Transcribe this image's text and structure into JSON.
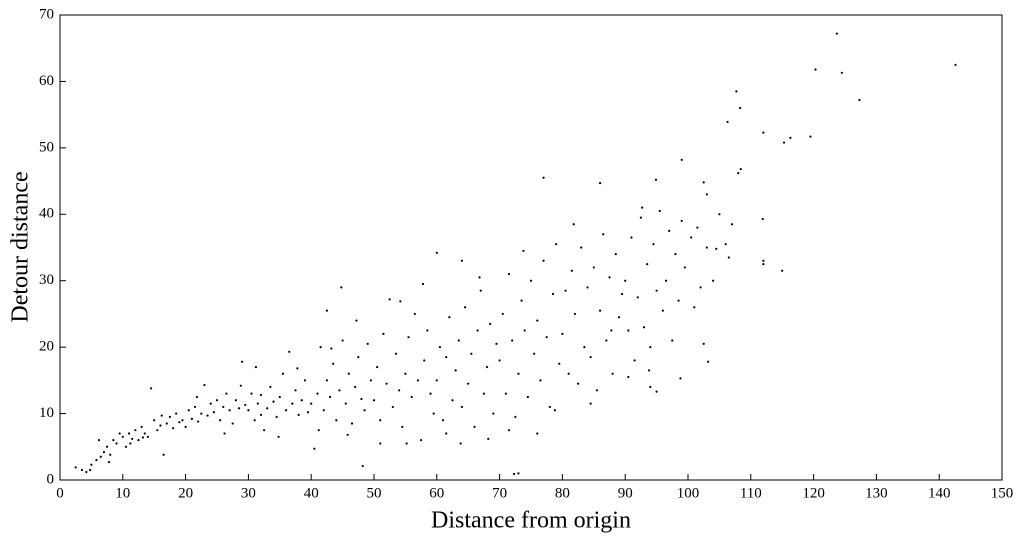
{
  "chart_data": {
    "type": "scatter",
    "x_label": "Distance from origin",
    "y_label": "Detour distance",
    "color": "#000000",
    "xlim": [
      0,
      150
    ],
    "xticks": [
      0,
      10,
      20,
      30,
      40,
      50,
      60,
      70,
      80,
      90,
      100,
      110,
      120,
      130,
      140,
      150
    ],
    "ylim": [
      0,
      70
    ],
    "yticks": [
      0,
      10,
      20,
      30,
      40,
      50,
      60,
      70
    ],
    "x": [
      123.7,
      120.3,
      124.5,
      142.6,
      127.3,
      107.7,
      108.3,
      106.3,
      112,
      115.3,
      116.3,
      119.5,
      108.4,
      108,
      99,
      86,
      77,
      72.3,
      73,
      48.2,
      60,
      64,
      44.8,
      42.5,
      115,
      112,
      112,
      111.9,
      102.5,
      103,
      92.7,
      94.9,
      103.2,
      98.8,
      94,
      95,
      2.5,
      3.5,
      4.2,
      5,
      5.8,
      6.5,
      7,
      7.5,
      8,
      8.5,
      9,
      9.5,
      6.2,
      4.8,
      7.8,
      10,
      10.5,
      11,
      11.5,
      12,
      12.5,
      13,
      13.5,
      14,
      14.5,
      15,
      15.5,
      16,
      16.5,
      17,
      17.5,
      18,
      18.5,
      19,
      19.5,
      11.2,
      13.2,
      16.2,
      20,
      20.5,
      21,
      21.5,
      22,
      22.5,
      23,
      23.5,
      24,
      24.5,
      25,
      25.5,
      26,
      26.5,
      27,
      27.5,
      28,
      28.5,
      29,
      29.5,
      21.8,
      26.2,
      28.8,
      30,
      30.5,
      31,
      31.5,
      32,
      32.5,
      33,
      33.5,
      34,
      34.5,
      35,
      35.5,
      36,
      36.5,
      37,
      37.5,
      38,
      38.5,
      39,
      39.5,
      31.2,
      34.8,
      37.8,
      32,
      40,
      40.5,
      41,
      41.5,
      42,
      42.5,
      43,
      43.5,
      44,
      44.5,
      45,
      45.5,
      46,
      46.5,
      47,
      47.5,
      48,
      48.5,
      49,
      49.5,
      41.2,
      45.8,
      47.2,
      43.2,
      50,
      50.5,
      51,
      51.5,
      52,
      52.5,
      53,
      53.5,
      54,
      54.5,
      55,
      55.5,
      56,
      56.5,
      57,
      57.5,
      58,
      58.5,
      59,
      59.5,
      51,
      54.2,
      57.8,
      55.2,
      60,
      60.5,
      61,
      61.5,
      62,
      62.5,
      63,
      63.5,
      64,
      64.5,
      65,
      65.5,
      66,
      66.5,
      67,
      67.5,
      68,
      68.5,
      69,
      69.5,
      61.5,
      63.8,
      66.8,
      68.2,
      70,
      70.5,
      71,
      71.5,
      72,
      72.5,
      73,
      73.5,
      74,
      74.5,
      75,
      75.5,
      76,
      76.5,
      77,
      77.5,
      78,
      78.5,
      79,
      79.5,
      71.5,
      76,
      78.8,
      73.8,
      80,
      80.5,
      81,
      81.5,
      82,
      82.5,
      83,
      83.5,
      84,
      84.5,
      85,
      85.5,
      86,
      86.5,
      87,
      87.5,
      88,
      88.5,
      89,
      89.5,
      81.8,
      84.5,
      87.8,
      90,
      90.5,
      91,
      91.5,
      92,
      92.5,
      93,
      93.5,
      94,
      94.5,
      95,
      95.5,
      96,
      96.5,
      97,
      97.5,
      98,
      98.5,
      99,
      99.5,
      90.5,
      93.8,
      100.5,
      101,
      102,
      102.5,
      103,
      104,
      105,
      106,
      106.5,
      107,
      104.5,
      101.5
    ],
    "values": [
      67.2,
      61.8,
      61.3,
      62.5,
      57.2,
      58.5,
      56,
      53.9,
      52.3,
      50.8,
      51.5,
      51.7,
      46.8,
      46.2,
      48.2,
      44.7,
      45.5,
      0.9,
      1,
      2.1,
      34.2,
      33,
      29,
      25.5,
      31.5,
      33,
      32.5,
      39.3,
      44.8,
      43,
      41,
      45.2,
      17.8,
      15.3,
      14,
      13.3,
      1.9,
      1.5,
      1.2,
      2.3,
      3,
      3.5,
      4.2,
      5,
      3.8,
      6,
      5.5,
      7,
      6,
      1.5,
      2.7,
      6.5,
      5,
      7,
      6.2,
      7.5,
      6,
      8,
      7,
      6.5,
      13.8,
      9,
      7.5,
      8.2,
      3.8,
      8.5,
      9.5,
      7.8,
      10,
      8.7,
      9,
      5.5,
      6.4,
      9.7,
      8,
      10.5,
      9.2,
      11,
      8.8,
      10,
      14.3,
      9.7,
      11.5,
      10.2,
      12,
      9,
      11,
      13,
      10.5,
      8.5,
      12,
      10.8,
      17.8,
      11.3,
      12.5,
      7,
      14.2,
      10.5,
      13,
      9,
      11.5,
      12.8,
      7.5,
      10.8,
      14,
      11.8,
      9.5,
      12.5,
      16,
      10.5,
      19.3,
      11.5,
      13.5,
      9.8,
      12,
      15,
      10.2,
      17,
      6.5,
      16.8,
      9.8,
      11.5,
      4.7,
      13,
      20,
      10.5,
      15,
      12.5,
      17.5,
      9,
      13.5,
      21,
      11.5,
      16,
      8.5,
      14,
      18.5,
      12.2,
      10.5,
      20.5,
      15,
      7.5,
      6.8,
      24,
      19.8,
      12,
      17,
      9,
      22,
      14.5,
      27.2,
      11,
      19,
      13.5,
      8,
      16,
      21.5,
      12.5,
      25,
      15,
      6,
      18,
      22.5,
      13,
      10,
      5.5,
      26.9,
      29.5,
      5.5,
      15,
      20,
      9,
      18.5,
      24.5,
      12,
      16.5,
      21,
      11,
      26,
      14.5,
      19,
      8,
      22.5,
      28.5,
      13,
      17,
      23.5,
      10,
      20.5,
      7,
      5.5,
      30.5,
      6.2,
      18,
      25,
      13,
      31,
      21,
      9.5,
      16,
      27,
      22.5,
      12.5,
      30,
      19,
      24,
      15,
      33,
      21.5,
      11,
      28,
      35.5,
      17.5,
      7.5,
      7,
      10.5,
      34.5,
      22,
      28.5,
      16,
      31.5,
      25,
      14.5,
      35,
      20,
      29,
      18.5,
      32,
      13.5,
      25.5,
      37,
      21,
      30.5,
      16,
      34,
      24.5,
      28,
      38.5,
      11.5,
      22.5,
      30,
      22.5,
      36.5,
      18,
      27.5,
      39.5,
      23,
      32.5,
      20,
      35.5,
      28.5,
      40.5,
      25.5,
      30,
      37.5,
      21,
      34,
      27,
      39,
      32,
      15.5,
      16.5,
      36.5,
      26,
      29,
      20.5,
      35,
      30,
      40,
      35.5,
      33.5,
      38.5,
      34.8,
      38
    ]
  }
}
